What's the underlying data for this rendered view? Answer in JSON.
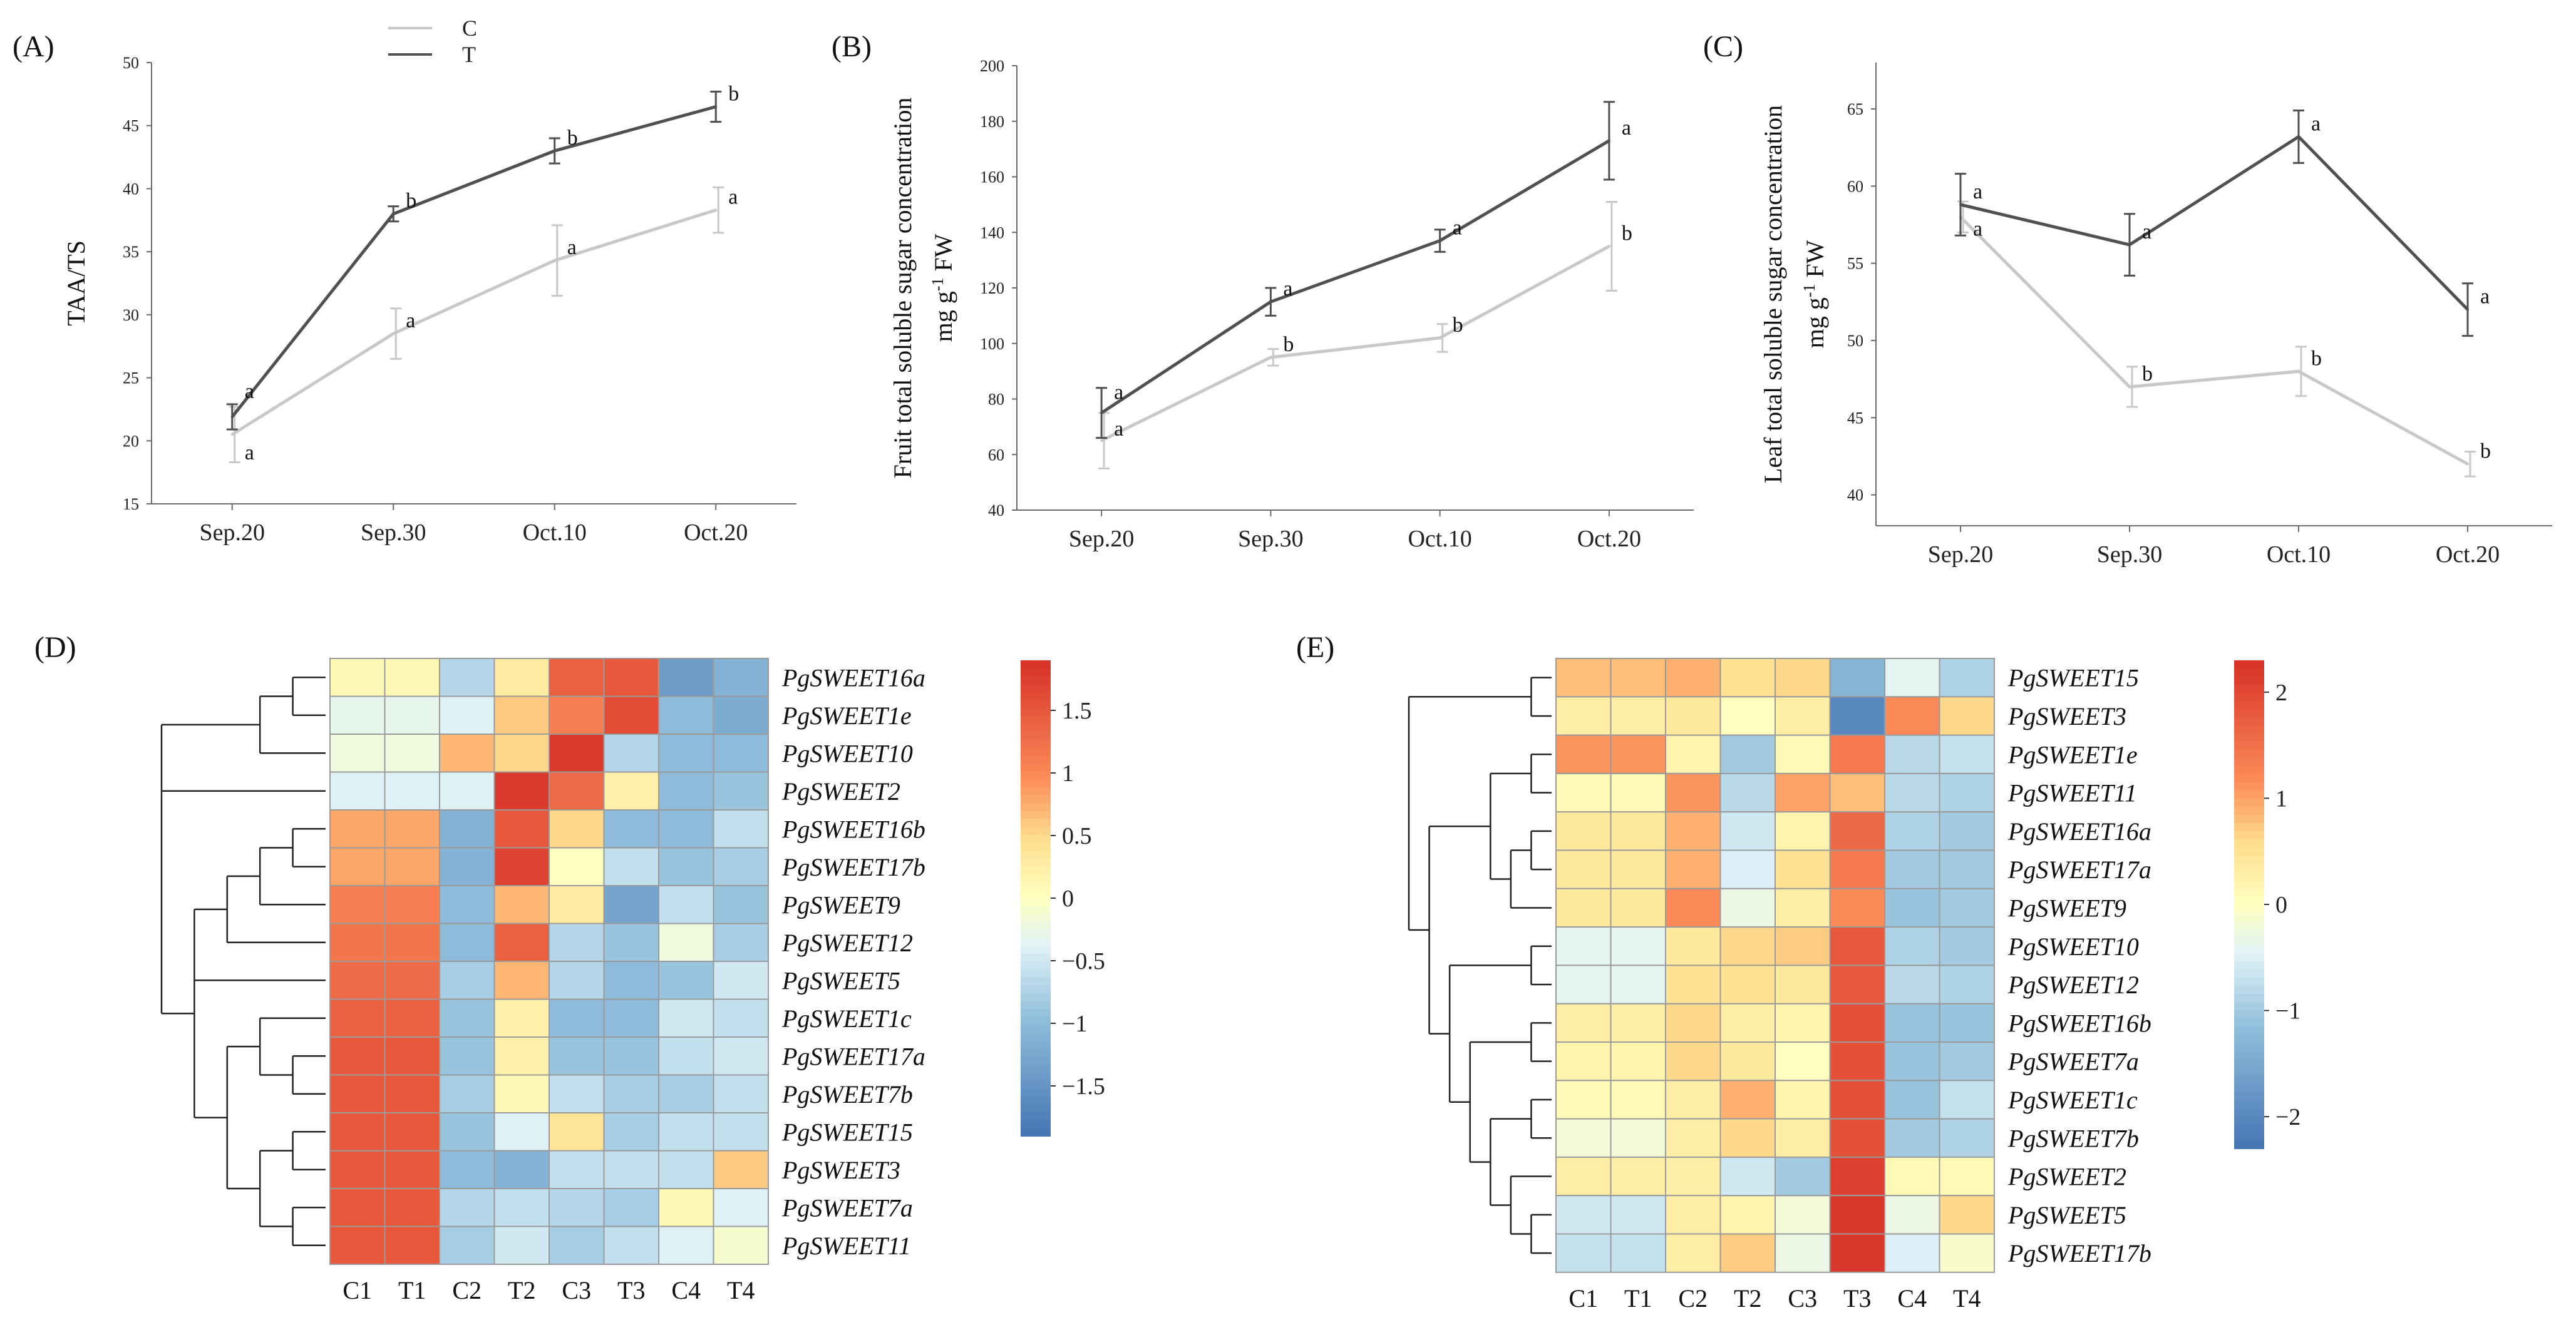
{
  "colors": {
    "C": "#c8c8c8",
    "T": "#505050",
    "axis": "#6a6a6a",
    "heat_low": "#4575b4",
    "heat_mid": "#ffffbf",
    "heat_high": "#d73027"
  },
  "chart_data": [
    {
      "panel": "(A)",
      "type": "line",
      "ylabel": "TAA/TS",
      "ylim": [
        15,
        50
      ],
      "yticks": [
        "15",
        "20",
        "25",
        "30",
        "35",
        "40",
        "45",
        "50"
      ],
      "categories": [
        "Sep.20",
        "Sep.30",
        "Oct.10",
        "Oct.20"
      ],
      "legend": [
        "C",
        "T"
      ],
      "series": [
        {
          "name": "C",
          "values": [
            20.5,
            28.5,
            34.3,
            38.3
          ],
          "errors": [
            2.2,
            2.0,
            2.8,
            1.8
          ],
          "letters": [
            "a",
            "a",
            "a",
            "a"
          ]
        },
        {
          "name": "T",
          "values": [
            21.9,
            38.0,
            43.0,
            46.5
          ],
          "errors": [
            1.0,
            0.6,
            1.0,
            1.2
          ],
          "letters": [
            "a",
            "b",
            "b",
            "b"
          ]
        }
      ]
    },
    {
      "panel": "(B)",
      "type": "line",
      "ylabel": "Fruit total soluble sugar concentration",
      "ylabel2": "mg g",
      "ylabel2_sup": "-1",
      "ylabel2_tail": " FW",
      "ylim": [
        40,
        200
      ],
      "yticks": [
        "40",
        "60",
        "80",
        "100",
        "120",
        "140",
        "160",
        "180",
        "200"
      ],
      "categories": [
        "Sep.20",
        "Sep.30",
        "Oct.10",
        "Oct.20"
      ],
      "series": [
        {
          "name": "C",
          "values": [
            65,
            95,
            102,
            135
          ],
          "errors": [
            10,
            3,
            5,
            16
          ],
          "letters": [
            "a",
            "b",
            "b",
            "b"
          ]
        },
        {
          "name": "T",
          "values": [
            75,
            115,
            137,
            173
          ],
          "errors": [
            9,
            5,
            4,
            14
          ],
          "letters": [
            "a",
            "a",
            "a",
            "a"
          ]
        }
      ]
    },
    {
      "panel": "(C)",
      "type": "line",
      "ylabel": "Leaf total soluble sugar concentration",
      "ylabel2": "mg g",
      "ylabel2_sup": "-1",
      "ylabel2_tail": " FW",
      "ylim": [
        38,
        68
      ],
      "yticks": [
        "40",
        "45",
        "50",
        "55",
        "60",
        "65"
      ],
      "categories": [
        "Sep.20",
        "Sep.30",
        "Oct.10",
        "Oct.20"
      ],
      "series": [
        {
          "name": "C",
          "values": [
            58.0,
            47.0,
            48.0,
            42.0
          ],
          "errors": [
            1.0,
            1.3,
            1.6,
            0.8
          ],
          "letters": [
            "a",
            "b",
            "b",
            "b"
          ]
        },
        {
          "name": "T",
          "values": [
            58.8,
            56.2,
            63.2,
            52.0
          ],
          "errors": [
            2.0,
            2.0,
            1.7,
            1.7
          ],
          "letters": [
            "a",
            "a",
            "a",
            "a"
          ]
        }
      ]
    },
    {
      "panel": "(D)",
      "type": "heatmap",
      "columns": [
        "C1",
        "T1",
        "C2",
        "T2",
        "C3",
        "T3",
        "C4",
        "T4"
      ],
      "rows": [
        "PgSWEET16a",
        "PgSWEET1e",
        "PgSWEET10",
        "PgSWEET2",
        "PgSWEET16b",
        "PgSWEET17b",
        "PgSWEET9",
        "PgSWEET12",
        "PgSWEET5",
        "PgSWEET1c",
        "PgSWEET17a",
        "PgSWEET7b",
        "PgSWEET15",
        "PgSWEET3",
        "PgSWEET7a",
        "PgSWEET11"
      ],
      "values": [
        [
          0.1,
          0.1,
          -0.7,
          0.3,
          1.4,
          1.5,
          -1.4,
          -1.1
        ],
        [
          -0.3,
          -0.3,
          -0.4,
          0.6,
          1.1,
          1.6,
          -1.0,
          -1.2
        ],
        [
          -0.2,
          -0.2,
          0.7,
          0.5,
          1.8,
          -0.7,
          -1.0,
          -1.0
        ],
        [
          -0.4,
          -0.4,
          -0.4,
          1.8,
          1.3,
          0.2,
          -1.0,
          -0.9
        ],
        [
          0.8,
          0.8,
          -1.1,
          1.5,
          0.5,
          -1.0,
          -1.0,
          -0.6
        ],
        [
          0.8,
          0.8,
          -1.1,
          1.7,
          0.0,
          -0.6,
          -0.9,
          -0.8
        ],
        [
          1.1,
          1.1,
          -1.0,
          0.7,
          0.3,
          -1.3,
          -0.6,
          -0.9
        ],
        [
          1.2,
          1.2,
          -1.0,
          1.4,
          -0.7,
          -0.9,
          -0.2,
          -0.8
        ],
        [
          1.3,
          1.3,
          -0.8,
          0.7,
          -0.7,
          -1.0,
          -0.9,
          -0.5
        ],
        [
          1.4,
          1.4,
          -0.9,
          0.2,
          -1.0,
          -1.0,
          -0.5,
          -0.6
        ],
        [
          1.5,
          1.5,
          -0.9,
          0.2,
          -0.9,
          -0.9,
          -0.6,
          -0.5
        ],
        [
          1.5,
          1.5,
          -0.8,
          0.1,
          -0.6,
          -0.8,
          -0.8,
          -0.6
        ],
        [
          1.5,
          1.5,
          -0.9,
          -0.4,
          0.4,
          -0.8,
          -0.6,
          -0.6
        ],
        [
          1.5,
          1.5,
          -1.0,
          -1.1,
          -0.6,
          -0.6,
          -0.6,
          0.6
        ],
        [
          1.5,
          1.5,
          -0.7,
          -0.6,
          -0.7,
          -0.8,
          0.1,
          -0.4
        ],
        [
          1.5,
          1.5,
          -0.8,
          -0.5,
          -0.8,
          -0.6,
          -0.4,
          -0.1
        ]
      ],
      "colorbar": {
        "min": -1.9,
        "max": 1.9,
        "ticks": [
          1.5,
          1,
          0.5,
          0,
          -0.5,
          -1,
          -1.5
        ],
        "labels": [
          "1.5",
          "1",
          "0.5",
          "0",
          "−0.5",
          "−1",
          "−1.5"
        ]
      }
    },
    {
      "panel": "(E)",
      "type": "heatmap",
      "columns": [
        "C1",
        "T1",
        "C2",
        "T2",
        "C3",
        "T3",
        "C4",
        "T4"
      ],
      "rows": [
        "PgSWEET15",
        "PgSWEET3",
        "PgSWEET1e",
        "PgSWEET11",
        "PgSWEET16a",
        "PgSWEET17a",
        "PgSWEET9",
        "PgSWEET10",
        "PgSWEET12",
        "PgSWEET16b",
        "PgSWEET7a",
        "PgSWEET1c",
        "PgSWEET7b",
        "PgSWEET2",
        "PgSWEET5",
        "PgSWEET17b"
      ],
      "values": [
        [
          0.8,
          0.8,
          0.9,
          0.5,
          0.6,
          -1.3,
          -0.4,
          -0.9
        ],
        [
          0.3,
          0.3,
          0.4,
          0.0,
          0.3,
          -2.0,
          1.2,
          0.6
        ],
        [
          1.1,
          1.1,
          0.2,
          -1.0,
          0.1,
          1.4,
          -0.8,
          -0.7
        ],
        [
          0.1,
          0.1,
          1.1,
          -0.8,
          1.0,
          0.8,
          -0.8,
          -0.9
        ],
        [
          0.4,
          0.4,
          0.9,
          -0.6,
          0.2,
          1.6,
          -0.9,
          -1.0
        ],
        [
          0.4,
          0.4,
          0.9,
          -0.5,
          0.5,
          1.4,
          -1.0,
          -1.0
        ],
        [
          0.4,
          0.4,
          1.2,
          -0.3,
          0.3,
          1.2,
          -1.1,
          -1.0
        ],
        [
          -0.4,
          -0.4,
          0.4,
          0.6,
          0.7,
          1.8,
          -0.9,
          -1.0
        ],
        [
          -0.4,
          -0.4,
          0.5,
          0.5,
          0.4,
          1.8,
          -0.8,
          -0.9
        ],
        [
          0.3,
          0.3,
          0.6,
          0.3,
          0.2,
          1.9,
          -1.1,
          -1.1
        ],
        [
          0.2,
          0.2,
          0.6,
          0.4,
          0.0,
          1.9,
          -1.1,
          -1.0
        ],
        [
          0.1,
          0.1,
          0.3,
          0.9,
          0.2,
          1.9,
          -1.1,
          -0.7
        ],
        [
          -0.2,
          -0.2,
          0.3,
          0.6,
          0.3,
          1.9,
          -1.0,
          -0.9
        ],
        [
          0.3,
          0.3,
          0.3,
          -0.6,
          -1.0,
          2.1,
          0.1,
          0.1
        ],
        [
          -0.6,
          -0.6,
          0.3,
          0.2,
          -0.2,
          2.2,
          -0.3,
          0.6
        ],
        [
          -0.7,
          -0.7,
          0.3,
          0.7,
          -0.3,
          2.2,
          -0.5,
          -0.1
        ]
      ],
      "colorbar": {
        "min": -2.3,
        "max": 2.3,
        "ticks": [
          2,
          1,
          0,
          -1,
          -2
        ],
        "labels": [
          "2",
          "1",
          "0",
          "−1",
          "−2"
        ]
      }
    }
  ]
}
